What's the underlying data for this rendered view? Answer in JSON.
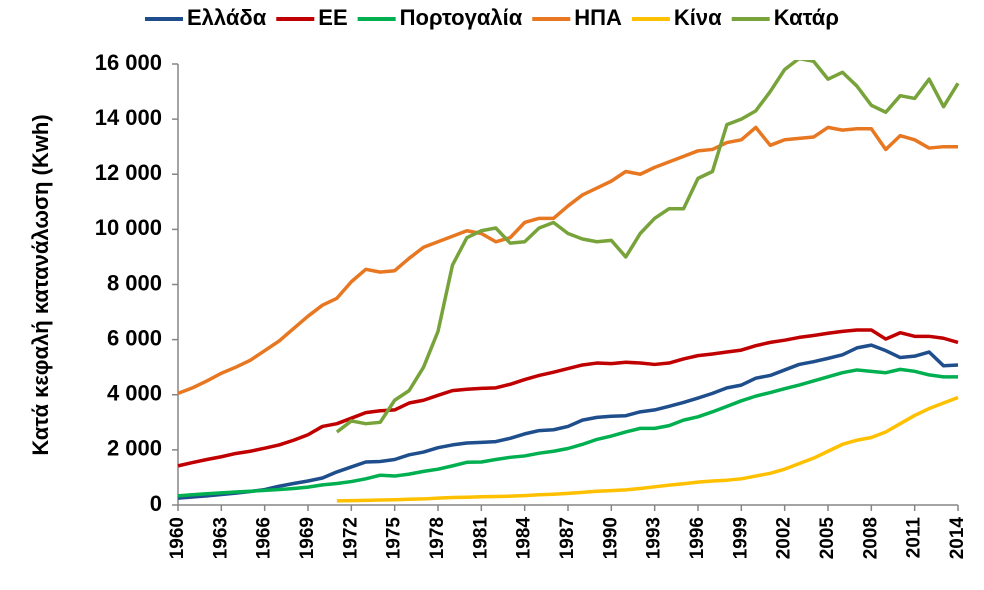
{
  "chart_data": {
    "type": "line",
    "y_label": "Κατά κεφαλή κατανάλωση (Kwh)",
    "x": [
      1960,
      1961,
      1962,
      1963,
      1964,
      1965,
      1966,
      1967,
      1968,
      1969,
      1970,
      1971,
      1972,
      1973,
      1974,
      1975,
      1976,
      1977,
      1978,
      1979,
      1980,
      1981,
      1982,
      1983,
      1984,
      1985,
      1986,
      1987,
      1988,
      1989,
      1990,
      1991,
      1992,
      1993,
      1994,
      1995,
      1996,
      1997,
      1998,
      1999,
      2000,
      2001,
      2002,
      2003,
      2004,
      2005,
      2006,
      2007,
      2008,
      2009,
      2010,
      2011,
      2012,
      2013,
      2014
    ],
    "xlim": [
      1960,
      2014
    ],
    "xticks": [
      1960,
      1963,
      1966,
      1969,
      1972,
      1975,
      1978,
      1981,
      1984,
      1987,
      1990,
      1993,
      1996,
      1999,
      2002,
      2005,
      2008,
      2011,
      2014
    ],
    "ylim": [
      0,
      16000
    ],
    "yticks": [
      0,
      {
        "value": 2000,
        "label": "2 000"
      },
      {
        "value": 4000,
        "label": "4 000"
      },
      {
        "value": 6000,
        "label": "6 000"
      },
      {
        "value": 8000,
        "label": "8 000"
      },
      {
        "value": 10000,
        "label": "10 000"
      },
      {
        "value": 12000,
        "label": "12 000"
      },
      {
        "value": 14000,
        "label": "14 000"
      },
      {
        "value": 16000,
        "label": "16 000"
      }
    ],
    "legend": "top",
    "series": [
      {
        "name": "Ελλάδα",
        "color": "#1f4e8c",
        "values": [
          250,
          290,
          330,
          380,
          430,
          490,
          560,
          680,
          780,
          870,
          980,
          1200,
          1380,
          1560,
          1580,
          1650,
          1820,
          1920,
          2080,
          2180,
          2250,
          2270,
          2300,
          2420,
          2580,
          2700,
          2730,
          2850,
          3080,
          3180,
          3220,
          3240,
          3380,
          3450,
          3580,
          3720,
          3880,
          4050,
          4250,
          4350,
          4600,
          4700,
          4900,
          5100,
          5200,
          5320,
          5450,
          5700,
          5800,
          5600,
          5350,
          5400,
          5550,
          5050,
          5080
        ]
      },
      {
        "name": "ΕΕ",
        "color": "#c00000",
        "values": [
          1420,
          1540,
          1650,
          1750,
          1870,
          1950,
          2060,
          2180,
          2350,
          2550,
          2850,
          2950,
          3150,
          3350,
          3420,
          3450,
          3700,
          3800,
          3980,
          4150,
          4200,
          4230,
          4250,
          4380,
          4550,
          4700,
          4820,
          4950,
          5080,
          5150,
          5130,
          5180,
          5150,
          5100,
          5150,
          5300,
          5420,
          5480,
          5550,
          5620,
          5780,
          5900,
          5980,
          6080,
          6150,
          6230,
          6300,
          6350,
          6350,
          6020,
          6250,
          6120,
          6120,
          6050,
          5900
        ]
      },
      {
        "name": "Πορτογαλία",
        "color": "#00b050",
        "values": [
          330,
          370,
          410,
          440,
          470,
          500,
          530,
          560,
          600,
          650,
          730,
          780,
          850,
          950,
          1080,
          1050,
          1120,
          1220,
          1300,
          1420,
          1550,
          1560,
          1650,
          1730,
          1780,
          1880,
          1950,
          2050,
          2200,
          2380,
          2500,
          2650,
          2780,
          2780,
          2880,
          3080,
          3200,
          3380,
          3580,
          3780,
          3950,
          4080,
          4220,
          4350,
          4500,
          4650,
          4800,
          4900,
          4850,
          4800,
          4920,
          4850,
          4720,
          4650,
          4650
        ]
      },
      {
        "name": "ΗΠΑ",
        "color": "#e87722",
        "values": [
          4050,
          4250,
          4500,
          4780,
          5000,
          5250,
          5600,
          5950,
          6400,
          6850,
          7250,
          7500,
          8100,
          8550,
          8450,
          8500,
          8950,
          9350,
          9550,
          9750,
          9950,
          9850,
          9550,
          9700,
          10250,
          10400,
          10400,
          10850,
          11250,
          11500,
          11750,
          12100,
          12000,
          12250,
          12450,
          12650,
          12850,
          12900,
          13150,
          13250,
          13700,
          13050,
          13250,
          13300,
          13350,
          13700,
          13600,
          13650,
          13650,
          12900,
          13400,
          13250,
          12950,
          13000,
          13000
        ]
      },
      {
        "name": "Κίνα",
        "color": "#ffc000",
        "values": [
          null,
          null,
          null,
          null,
          null,
          null,
          null,
          null,
          null,
          null,
          null,
          150,
          160,
          170,
          180,
          190,
          210,
          220,
          250,
          270,
          280,
          300,
          310,
          320,
          340,
          370,
          390,
          420,
          460,
          500,
          520,
          550,
          600,
          660,
          720,
          770,
          830,
          870,
          900,
          950,
          1050,
          1150,
          1300,
          1500,
          1700,
          1950,
          2200,
          2350,
          2450,
          2650,
          2950,
          3250,
          3500,
          3700,
          3900
        ]
      },
      {
        "name": "Κατάρ",
        "color": "#77a33a",
        "values": [
          null,
          null,
          null,
          null,
          null,
          null,
          null,
          null,
          null,
          null,
          null,
          2650,
          3050,
          2950,
          3000,
          3800,
          4150,
          5000,
          6300,
          8700,
          9700,
          9950,
          10050,
          9500,
          9550,
          10050,
          10250,
          9850,
          9650,
          9550,
          9600,
          9000,
          9850,
          10400,
          10750,
          10750,
          11850,
          12100,
          13800,
          14000,
          14300,
          15000,
          15800,
          16200,
          16100,
          15450,
          15700,
          15200,
          14500,
          14250,
          14850,
          14750,
          15450,
          14450,
          15300
        ]
      }
    ]
  }
}
